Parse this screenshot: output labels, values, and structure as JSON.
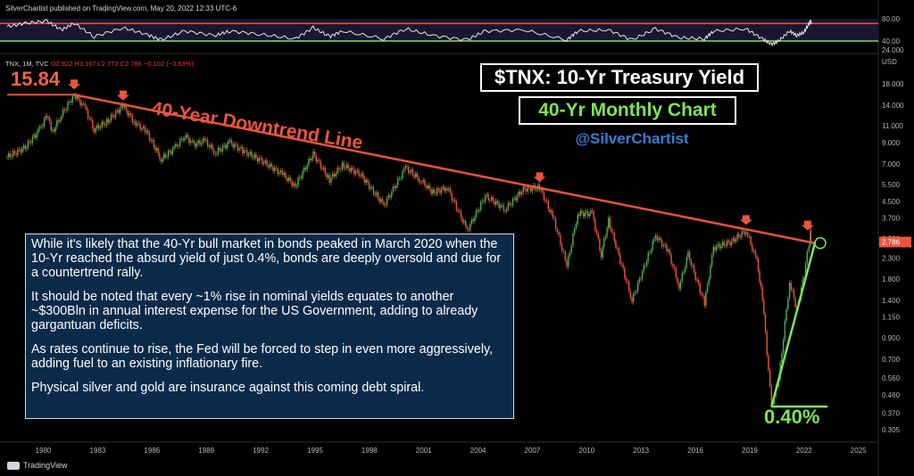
{
  "header": {
    "published": "SilverChartist published on TradingView.com, May 20, 2022 12:33 UTC-6"
  },
  "symbol_line": {
    "prefix": "TNX, 1M, TVC",
    "ohlc": "O2.922  H3.167  L2.772  C2.786  −0.102 (−3.53%)"
  },
  "footer": {
    "brand": "TradingView"
  },
  "titles": {
    "main": "$TNX: 10-Yr Treasury Yield",
    "sub": "40-Yr Monthly Chart",
    "handle": "@SilverChartist"
  },
  "annotations": {
    "peak_label": "15.84",
    "low_label": "0.40%",
    "trend_label": "40-Year Downtrend Line"
  },
  "callout": {
    "p1": "While it's likely that the 40-Yr bull market in bonds peaked in March 2020 when the 10-Yr reached the absurd yield of just 0.4%, bonds are deeply oversold and due for a countertrend rally.",
    "p2": "It should be noted that every ~1% rise in nominal yields equates to another ~$300Bln in annual interest expense for the US Government, adding to already gargantuan deficits.",
    "p3": "As rates continue to rise, the Fed will be forced to step in even more aggressively, adding fuel to an existing inflationary fire.",
    "p4": "Physical silver and gold are insurance against this coming debt spiral."
  },
  "colors": {
    "background": "#000000",
    "trendline": "#e8553e",
    "support": "#7ee35b",
    "callout_bg": "#0b2a4a",
    "up": "#4caf50",
    "down": "#e8553e"
  },
  "chart_data": {
    "type": "line",
    "scale": "log",
    "x_ticks": [
      "1980",
      "1983",
      "1986",
      "1989",
      "1992",
      "1995",
      "1998",
      "2001",
      "2004",
      "2007",
      "2010",
      "2013",
      "2016",
      "2019",
      "2022",
      "2025"
    ],
    "y_ticks": [
      "18.000",
      "14.000",
      "11.000",
      "9.000",
      "7.000",
      "5.500",
      "4.500",
      "3.700",
      "2.900",
      "2.300",
      "1.800",
      "1.400",
      "1.150",
      "0.900",
      "0.700",
      "0.560",
      "0.460",
      "0.370",
      "0.305"
    ],
    "y_unit": "USD",
    "last_price": "2.786",
    "xlim": [
      1978.0,
      2026.0
    ],
    "ylim": [
      0.28,
      22
    ],
    "series": [
      {
        "points": [
          [
            1978.0,
            7.6
          ],
          [
            1979.0,
            8.5
          ],
          [
            1979.8,
            10.5
          ],
          [
            1980.2,
            12.5
          ],
          [
            1980.5,
            10.2
          ],
          [
            1981.0,
            12.5
          ],
          [
            1981.7,
            15.84
          ],
          [
            1982.3,
            13.5
          ],
          [
            1982.8,
            10.5
          ],
          [
            1983.5,
            11.5
          ],
          [
            1984.4,
            13.9
          ],
          [
            1985.0,
            11.5
          ],
          [
            1985.7,
            10.2
          ],
          [
            1986.5,
            7.4
          ],
          [
            1987.3,
            8.5
          ],
          [
            1987.8,
            9.8
          ],
          [
            1988.3,
            8.8
          ],
          [
            1988.9,
            9.2
          ],
          [
            1989.5,
            8.0
          ],
          [
            1990.3,
            9.0
          ],
          [
            1991.0,
            8.2
          ],
          [
            1992.0,
            7.3
          ],
          [
            1993.2,
            6.2
          ],
          [
            1993.9,
            5.4
          ],
          [
            1994.9,
            7.9
          ],
          [
            1995.8,
            5.8
          ],
          [
            1996.5,
            6.9
          ],
          [
            1997.5,
            6.2
          ],
          [
            1998.8,
            4.3
          ],
          [
            2000.0,
            6.7
          ],
          [
            2000.8,
            5.8
          ],
          [
            2001.5,
            5.0
          ],
          [
            2002.3,
            5.3
          ],
          [
            2003.4,
            3.2
          ],
          [
            2004.4,
            4.8
          ],
          [
            2005.5,
            4.1
          ],
          [
            2006.5,
            5.2
          ],
          [
            2007.4,
            5.3
          ],
          [
            2008.2,
            3.6
          ],
          [
            2008.9,
            2.1
          ],
          [
            2009.5,
            3.9
          ],
          [
            2010.3,
            3.9
          ],
          [
            2010.8,
            2.4
          ],
          [
            2011.2,
            3.6
          ],
          [
            2012.5,
            1.4
          ],
          [
            2013.8,
            3.0
          ],
          [
            2014.5,
            2.5
          ],
          [
            2015.1,
            1.65
          ],
          [
            2015.6,
            2.4
          ],
          [
            2016.5,
            1.35
          ],
          [
            2017.0,
            2.6
          ],
          [
            2018.0,
            2.8
          ],
          [
            2018.8,
            3.2
          ],
          [
            2019.4,
            2.2
          ],
          [
            2019.7,
            1.45
          ],
          [
            2020.2,
            0.4
          ],
          [
            2020.6,
            0.55
          ],
          [
            2021.2,
            1.75
          ],
          [
            2021.6,
            1.25
          ],
          [
            2022.0,
            1.9
          ],
          [
            2022.35,
            3.1
          ],
          [
            2022.4,
            2.786
          ]
        ]
      }
    ],
    "indicator": {
      "type": "line",
      "levels": [
        80,
        40
      ],
      "overbought": 71.5,
      "oversold": 40,
      "ylim": [
        24,
        85
      ],
      "y_ticks": [
        "80.00",
        "40.00",
        "24.000"
      ],
      "points": [
        [
          1978.0,
          66
        ],
        [
          1979.0,
          72
        ],
        [
          1980.2,
          76
        ],
        [
          1981.0,
          60
        ],
        [
          1981.7,
          72
        ],
        [
          1982.8,
          48
        ],
        [
          1984.4,
          64
        ],
        [
          1985.7,
          52
        ],
        [
          1986.5,
          42
        ],
        [
          1987.8,
          58
        ],
        [
          1989.5,
          50
        ],
        [
          1990.3,
          58
        ],
        [
          1992.0,
          52
        ],
        [
          1993.9,
          44
        ],
        [
          1994.9,
          64
        ],
        [
          1995.8,
          48
        ],
        [
          1996.5,
          58
        ],
        [
          1998.8,
          44
        ],
        [
          2000.0,
          62
        ],
        [
          2001.5,
          50
        ],
        [
          2003.4,
          42
        ],
        [
          2004.4,
          58
        ],
        [
          2006.5,
          60
        ],
        [
          2008.9,
          42
        ],
        [
          2009.5,
          58
        ],
        [
          2011.2,
          60
        ],
        [
          2012.5,
          42
        ],
        [
          2013.8,
          62
        ],
        [
          2015.1,
          46
        ],
        [
          2016.5,
          44
        ],
        [
          2017.0,
          58
        ],
        [
          2018.8,
          62
        ],
        [
          2019.7,
          44
        ],
        [
          2020.2,
          34
        ],
        [
          2020.6,
          40
        ],
        [
          2021.2,
          58
        ],
        [
          2021.6,
          50
        ],
        [
          2022.0,
          56
        ],
        [
          2022.35,
          76
        ],
        [
          2022.4,
          72
        ]
      ]
    },
    "trendline": [
      [
        1981.7,
        15.84
      ],
      [
        2022.6,
        2.75
      ]
    ],
    "support_line": [
      [
        2020.2,
        0.4
      ],
      [
        2022.6,
        2.75
      ]
    ],
    "support_base": [
      [
        2020.2,
        0.4
      ],
      [
        2023.3,
        0.4
      ]
    ],
    "arrows": [
      [
        1981.7,
        15.84
      ],
      [
        1984.4,
        13.9
      ],
      [
        2007.4,
        5.3
      ],
      [
        2018.8,
        3.2
      ],
      [
        2022.2,
        3.0
      ]
    ]
  }
}
